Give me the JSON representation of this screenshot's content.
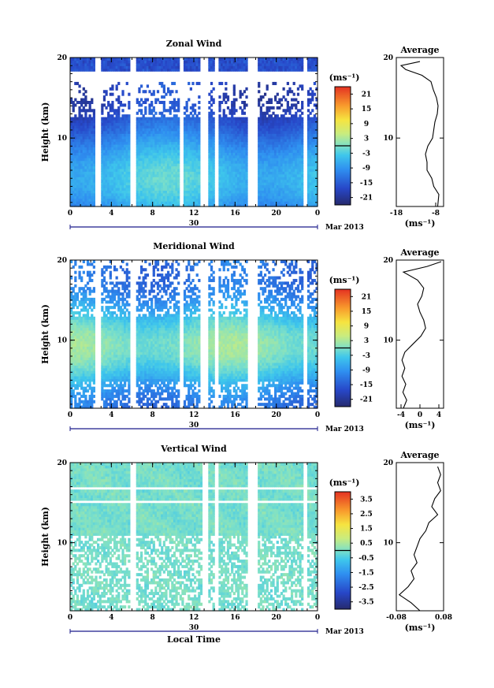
{
  "chart_data": [
    {
      "type": "heatmap",
      "title": "Zonal Wind",
      "ylabel": "Height (km)",
      "ylim": [
        1.5,
        20
      ],
      "y_ticks": [
        "20",
        "10"
      ],
      "xlim": [
        0,
        24
      ],
      "x_ticks": [
        "0",
        "4",
        "8",
        "12",
        "16",
        "20",
        "0"
      ],
      "date_axis": {
        "day": "30",
        "month_year": "Mar 2013"
      },
      "colorbar": {
        "unit": "(ms⁻¹)",
        "ticks": [
          "21",
          "15",
          "9",
          "3",
          "-3",
          "-9",
          "-15",
          "-21"
        ],
        "range": [
          -24,
          24
        ]
      },
      "data_gaps_hours": [
        [
          2.4,
          2.9
        ],
        [
          5.8,
          6.4
        ],
        [
          10.6,
          10.9
        ],
        [
          12.6,
          13.3
        ],
        [
          14.0,
          14.4
        ],
        [
          17.3,
          18.1
        ],
        [
          22.6,
          23.0
        ]
      ],
      "average": {
        "title": "Average",
        "unit": "(ms⁻¹)",
        "x_ticks": [
          "-18",
          "-8"
        ],
        "xlim": [
          -18,
          -6
        ],
        "height": [
          1.5,
          3,
          4,
          5,
          6,
          7,
          8,
          9,
          10,
          11,
          12,
          13,
          14,
          15,
          16,
          17,
          17.8,
          18.5,
          19,
          19.5
        ],
        "value": [
          -7.5,
          -7.2,
          -8.5,
          -9.0,
          -10.2,
          -10.2,
          -10.6,
          -10.0,
          -8.8,
          -8.5,
          -8.2,
          -7.6,
          -7.4,
          -7.8,
          -8.6,
          -9.2,
          -11.5,
          -15.6,
          -16.8,
          -12
        ]
      }
    },
    {
      "type": "heatmap",
      "title": "Meridional Wind",
      "ylabel": "Height (km)",
      "ylim": [
        1.5,
        20
      ],
      "y_ticks": [
        "20",
        "10"
      ],
      "xlim": [
        0,
        24
      ],
      "x_ticks": [
        "0",
        "4",
        "8",
        "12",
        "16",
        "20",
        "0"
      ],
      "date_axis": {
        "day": "30",
        "month_year": "Mar 2013"
      },
      "colorbar": {
        "unit": "(ms⁻¹)",
        "ticks": [
          "21",
          "15",
          "9",
          "3",
          "-3",
          "-9",
          "-15",
          "-21"
        ],
        "range": [
          -24,
          24
        ]
      },
      "data_gaps_hours": [
        [
          2.4,
          2.9
        ],
        [
          5.8,
          6.4
        ],
        [
          10.6,
          10.9
        ],
        [
          12.6,
          13.3
        ],
        [
          14.0,
          14.4
        ],
        [
          17.3,
          18.1
        ],
        [
          22.6,
          23.0
        ]
      ],
      "average": {
        "title": "Average",
        "unit": "(ms⁻¹)",
        "x_ticks": [
          "-4",
          "0",
          "4"
        ],
        "xlim": [
          -5,
          5
        ],
        "height": [
          1.5,
          2.5,
          3.5,
          4.5,
          5.5,
          6.5,
          7.5,
          8.5,
          9.5,
          10.5,
          11.5,
          12.5,
          13.5,
          14.5,
          15.5,
          16.5,
          17.5,
          18.5,
          19.2,
          19.8
        ],
        "value": [
          -3.5,
          -2.8,
          -3.6,
          -3.0,
          -3.8,
          -3.2,
          -3.8,
          -3.2,
          -1.5,
          0.2,
          1.2,
          0.8,
          0.0,
          -0.5,
          0.4,
          0.8,
          -0.5,
          -3.5,
          1.5,
          4.5
        ]
      }
    },
    {
      "type": "heatmap",
      "title": "Vertical Wind",
      "ylabel": "Height (km)",
      "xlabel": "Local Time",
      "ylim": [
        1.5,
        20
      ],
      "y_ticks": [
        "20",
        "10"
      ],
      "xlim": [
        0,
        24
      ],
      "x_ticks": [
        "0",
        "4",
        "8",
        "12",
        "16",
        "20",
        "0"
      ],
      "date_axis": {
        "day": "30",
        "month_year": "Mar 2013"
      },
      "colorbar": {
        "unit": "(ms⁻¹)",
        "ticks": [
          "3.5",
          "2.5",
          "1.5",
          "0.5",
          "-0.5",
          "-1.5",
          "-2.5",
          "-3.5"
        ],
        "range": [
          -4,
          4
        ]
      },
      "data_gaps_hours": [
        [
          5.8,
          6.4
        ],
        [
          12.8,
          13.3
        ],
        [
          14.0,
          14.4
        ],
        [
          17.3,
          18.1
        ],
        [
          22.6,
          23.0
        ]
      ],
      "average": {
        "title": "Average",
        "unit": "(ms⁻¹)",
        "x_ticks": [
          "-0.08",
          "0.08"
        ],
        "xlim": [
          -0.08,
          0.08
        ],
        "height": [
          1.5,
          2.5,
          3.5,
          4.5,
          5.5,
          6.5,
          7.5,
          8.5,
          9.5,
          10.5,
          11.5,
          12.5,
          13.5,
          14.5,
          15.5,
          16.5,
          17.5,
          18.5,
          19.5
        ],
        "value": [
          0.0,
          -0.03,
          -0.07,
          -0.04,
          -0.02,
          -0.03,
          -0.01,
          -0.02,
          -0.01,
          0.0,
          0.02,
          0.03,
          0.06,
          0.04,
          0.05,
          0.07,
          0.06,
          0.07,
          0.06
        ]
      }
    }
  ]
}
